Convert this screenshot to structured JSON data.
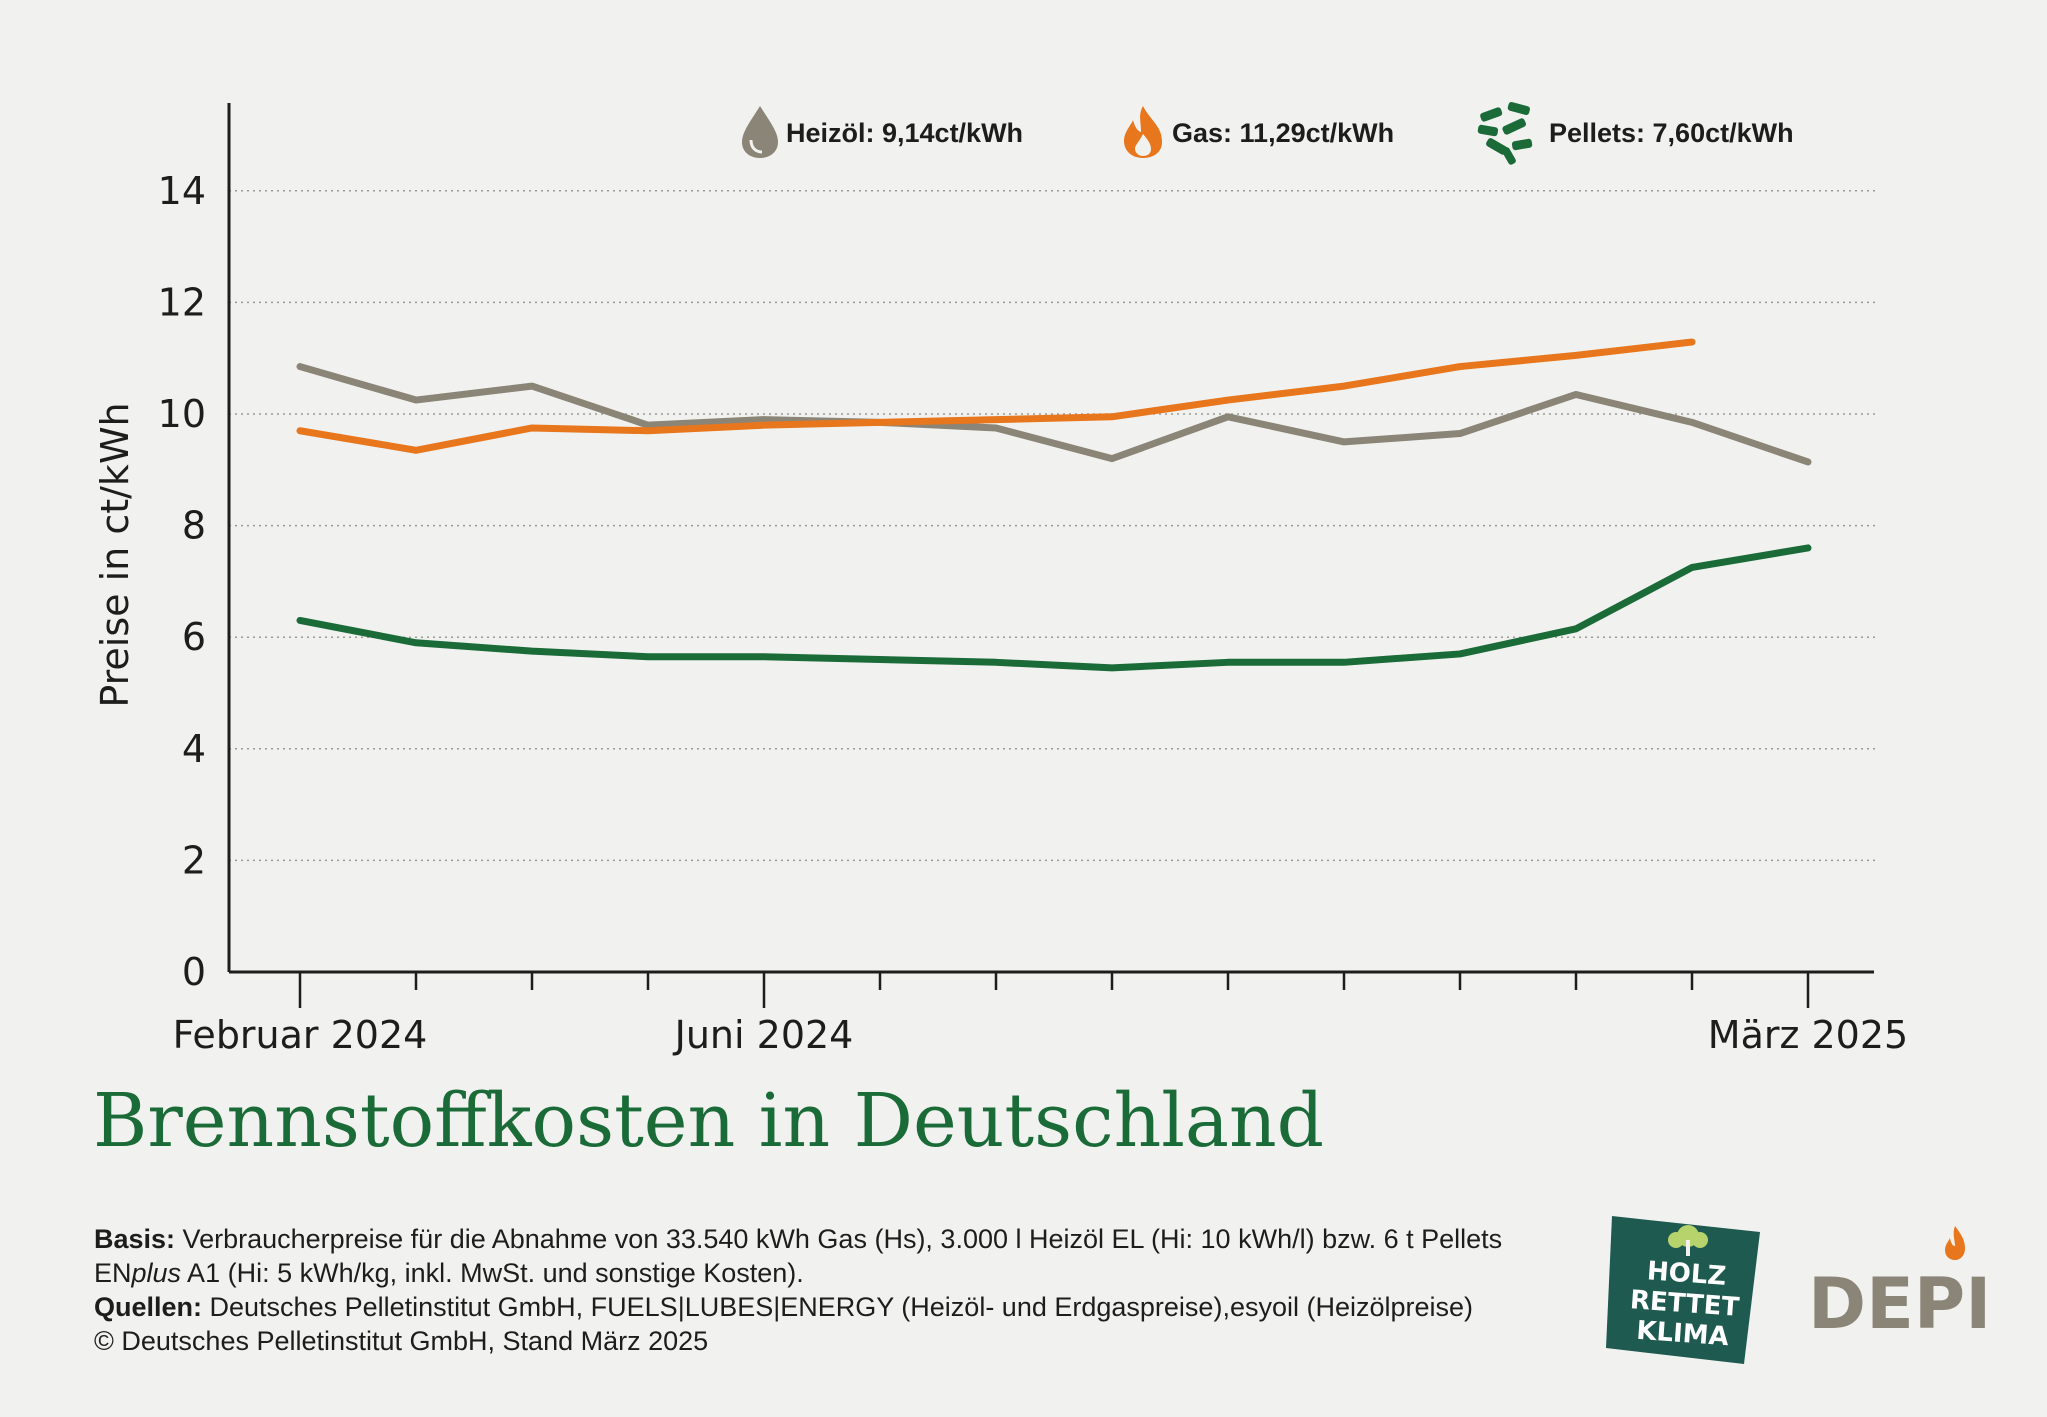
{
  "chart_data": {
    "type": "line",
    "title": "Brennstoffkosten in Deutschland",
    "ylabel": "Preise in ct/kWh",
    "ylim": [
      0,
      14
    ],
    "yticks": [
      "0",
      "2",
      "4",
      "6",
      "8",
      "10",
      "12",
      "14"
    ],
    "x_tick_labels": [
      "Februar 2024",
      "Juni 2024",
      "März 2025"
    ],
    "x": [
      "2024-02",
      "2024-03",
      "2024-04",
      "2024-05",
      "2024-06",
      "2024-07",
      "2024-08",
      "2024-09",
      "2024-10",
      "2024-11",
      "2024-12",
      "2025-01",
      "2025-02",
      "2025-03"
    ],
    "grid": true,
    "series": [
      {
        "name": "Heizöl",
        "legend": "Heizöl: 9,14ct/kWh",
        "icon": "oil-drop-icon",
        "color": "#8b8578",
        "values": [
          10.85,
          10.25,
          10.5,
          9.8,
          9.9,
          9.85,
          9.75,
          9.2,
          9.95,
          9.5,
          9.65,
          10.35,
          9.85,
          9.14
        ]
      },
      {
        "name": "Gas",
        "legend": "Gas: 11,29ct/kWh",
        "icon": "flame-icon",
        "color": "#e8761d",
        "values": [
          9.7,
          9.35,
          9.75,
          9.7,
          9.8,
          9.85,
          9.9,
          9.95,
          10.25,
          10.5,
          10.85,
          11.05,
          11.29,
          null
        ]
      },
      {
        "name": "Pellets",
        "legend": "Pellets: 7,60ct/kWh",
        "icon": "pellets-icon",
        "color": "#1a6b38",
        "values": [
          6.3,
          5.9,
          5.75,
          5.65,
          5.65,
          5.6,
          5.55,
          5.45,
          5.55,
          5.55,
          5.7,
          6.15,
          7.25,
          7.6
        ]
      }
    ]
  },
  "notes": {
    "basis_label": "Basis:",
    "basis_text_1": " Verbraucherpreise für die Abnahme von 33.540 kWh Gas (Hs), 3.000 l Heizöl EL (Hi: 10 kWh/l) bzw. 6 t Pellets",
    "basis_text_2a": "EN",
    "basis_text_2b": "plus",
    "basis_text_2c": " A1 (Hi: 5 kWh/kg, inkl. MwSt. und sonstige Kosten).",
    "sources_label": "Quellen:",
    "sources_text": " Deutsches Pelletinstitut GmbH, FUELS|LUBES|ENERGY (Heizöl- und Erdgaspreise),esyoil (Heizölpreise)",
    "copyright": "© Deutsches Pelletinstitut GmbH, Stand März 2025"
  },
  "logos": {
    "hrk_line1": "HOLZ",
    "hrk_line2": "RETTET",
    "hrk_line3": "KLIMA",
    "hrk_color": "#1e5a50",
    "depi_text": "DEPI",
    "depi_color": "#8b8578",
    "depi_flame_color": "#e8761d"
  }
}
